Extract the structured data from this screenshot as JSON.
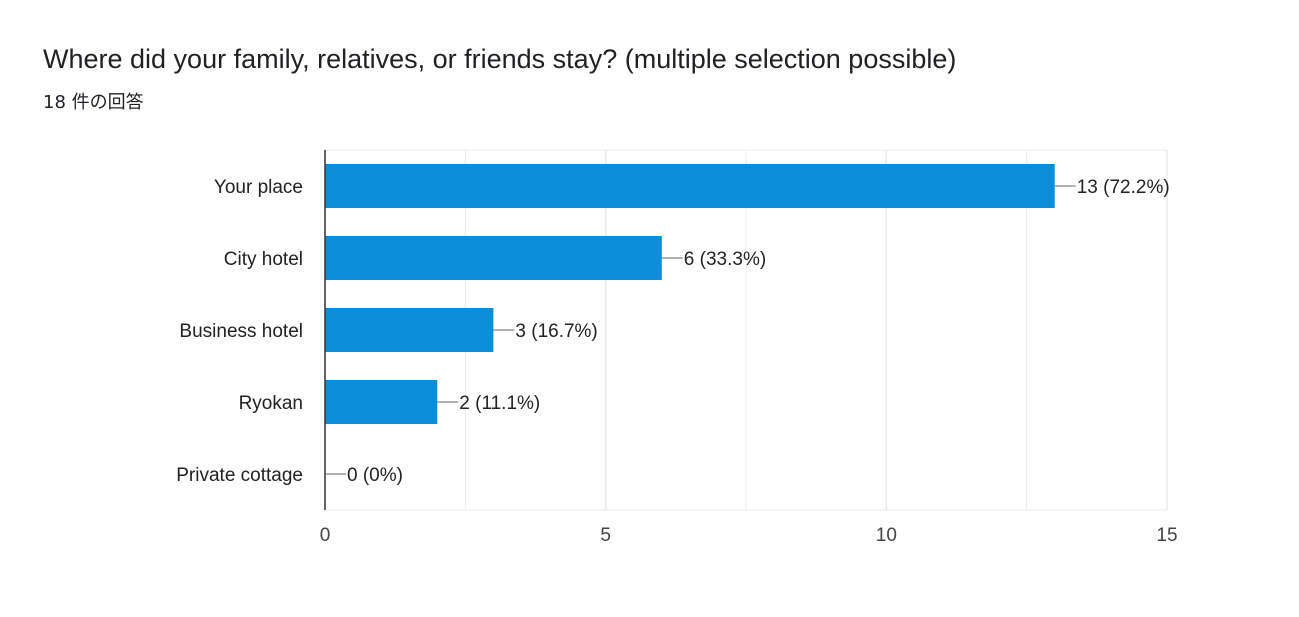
{
  "header": {
    "title": "Where did your family, relatives, or friends stay? (multiple selection possible)",
    "response_count": "18 件の回答"
  },
  "colors": {
    "bar": "#0a8ed9",
    "axis": "#333333",
    "grid": "#ebebeb",
    "leader": "#666666"
  },
  "chart_data": {
    "type": "bar",
    "orientation": "horizontal",
    "categories": [
      "Your place",
      "City hotel",
      "Business hotel",
      "Ryokan",
      "Private cottage"
    ],
    "values": [
      13,
      6,
      3,
      2,
      0
    ],
    "data_labels": [
      "13 (72.2%)",
      "6 (33.3%)",
      "3 (16.7%)",
      "2 (11.1%)",
      "0 (0%)"
    ],
    "xlim": [
      0,
      15
    ],
    "xticks": [
      0,
      5,
      10,
      15
    ],
    "xtick_labels": [
      "0",
      "5",
      "10",
      "15"
    ],
    "grid": true,
    "legend": "none"
  }
}
